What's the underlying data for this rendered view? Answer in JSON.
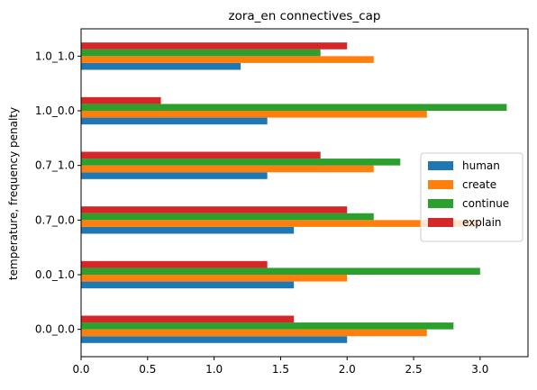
{
  "chart_data": {
    "type": "bar",
    "orientation": "horizontal",
    "title": "zora_en connectives_cap",
    "xlabel": "",
    "ylabel": "temperature, frequency penalty",
    "categories": [
      "0.0_0.0",
      "0.0_1.0",
      "0.7_0.0",
      "0.7_1.0",
      "1.0_0.0",
      "1.0_1.0"
    ],
    "xlim": [
      0,
      3.36
    ],
    "xticks": [
      "0.0",
      "0.5",
      "1.0",
      "1.5",
      "2.0",
      "2.5",
      "3.0"
    ],
    "grid": false,
    "legend_position": "center-right",
    "series": [
      {
        "name": "human",
        "color": "#1f77b4",
        "values": [
          2.0,
          1.6,
          1.6,
          1.4,
          1.4,
          1.2
        ]
      },
      {
        "name": "create",
        "color": "#ff7f0e",
        "values": [
          2.6,
          2.0,
          3.0,
          2.2,
          2.6,
          2.2
        ]
      },
      {
        "name": "continue",
        "color": "#2ca02c",
        "values": [
          2.8,
          3.0,
          2.2,
          2.4,
          3.2,
          1.8
        ]
      },
      {
        "name": "explain",
        "color": "#d62728",
        "values": [
          1.6,
          1.4,
          2.0,
          1.8,
          0.6,
          2.0
        ]
      }
    ]
  }
}
